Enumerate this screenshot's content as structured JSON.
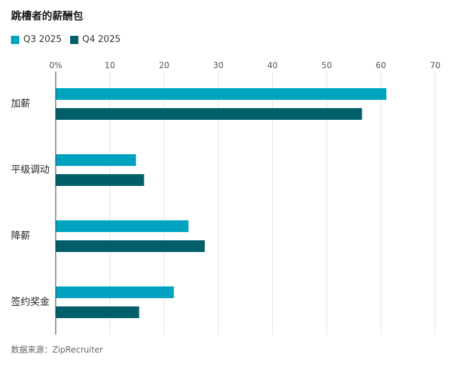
{
  "title": "跳槽者的薪酬包",
  "source": "数据来源：ZipRecruiter",
  "colors": {
    "q3": "#00a3bf",
    "q4": "#005f6a",
    "grid": "#e3e3e3",
    "axis": "#333333"
  },
  "chart_data": {
    "type": "bar",
    "orientation": "horizontal",
    "categories": [
      "加薪",
      "平级调动",
      "降薪",
      "签约奖金"
    ],
    "series": [
      {
        "name": "Q3 2025",
        "values": [
          61,
          14.8,
          24.5,
          21.8
        ]
      },
      {
        "name": "Q4 2025",
        "values": [
          56.5,
          16.3,
          27.5,
          15.4
        ]
      }
    ],
    "xlim": [
      0,
      70
    ],
    "xticks": [
      "0%",
      "10",
      "20",
      "30",
      "40",
      "50",
      "60",
      "70"
    ],
    "grid": true,
    "legend": "top-left"
  }
}
